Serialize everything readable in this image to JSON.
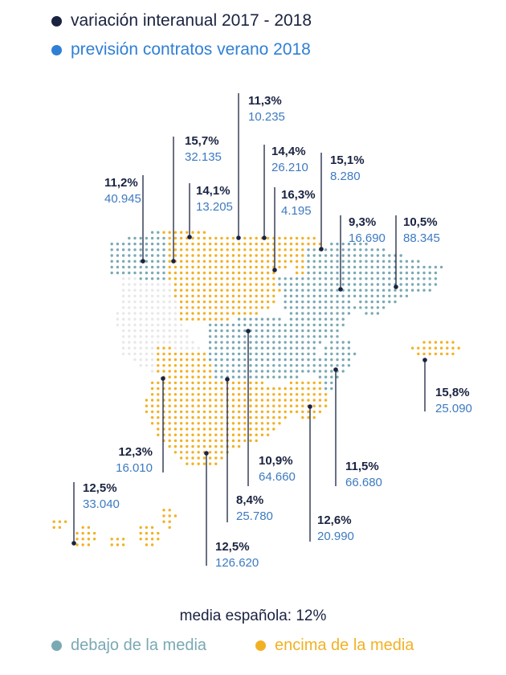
{
  "legend": {
    "top": [
      {
        "label": "variación interanual 2017 - 2018",
        "color": "#1a2340"
      },
      {
        "label": "previsión contratos verano 2018",
        "color": "#2f7fd6"
      }
    ],
    "bottom": [
      {
        "label": "debajo de la media",
        "color": "#7aa9b3"
      },
      {
        "label": "encima de la media",
        "color": "#f2b124"
      }
    ]
  },
  "footer": {
    "average_label": "media española: 12%"
  },
  "colors": {
    "pct_text": "#1a2340",
    "count_text": "#3d7ac0",
    "leader": "#1a2340",
    "below": "#7aa9b3",
    "above": "#f2b124",
    "neutral": "#e8e8e8"
  },
  "chart_data": {
    "type": "map",
    "title": "",
    "reference": {
      "label": "media española",
      "value": 12,
      "unit": "%"
    },
    "regions": [
      {
        "variacion": "11,2%",
        "contratos": "40.945",
        "category": "below"
      },
      {
        "variacion": "15,7%",
        "contratos": "32.135",
        "category": "above"
      },
      {
        "variacion": "14,1%",
        "contratos": "13.205",
        "category": "above"
      },
      {
        "variacion": "11,3%",
        "contratos": "10.235",
        "category": "below"
      },
      {
        "variacion": "14,4%",
        "contratos": "26.210",
        "category": "above"
      },
      {
        "variacion": "16,3%",
        "contratos": "4.195",
        "category": "above"
      },
      {
        "variacion": "15,1%",
        "contratos": "8.280",
        "category": "above"
      },
      {
        "variacion": "9,3%",
        "contratos": "16.690",
        "category": "below"
      },
      {
        "variacion": "10,5%",
        "contratos": "88.345",
        "category": "below"
      },
      {
        "variacion": "15,8%",
        "contratos": "25.090",
        "category": "above"
      },
      {
        "variacion": "12,3%",
        "contratos": "16.010",
        "category": "above"
      },
      {
        "variacion": "10,9%",
        "contratos": "64.660",
        "category": "below"
      },
      {
        "variacion": "11,5%",
        "contratos": "66.680",
        "category": "below"
      },
      {
        "variacion": "8,4%",
        "contratos": "25.780",
        "category": "below"
      },
      {
        "variacion": "12,6%",
        "contratos": "20.990",
        "category": "above"
      },
      {
        "variacion": "12,5%",
        "contratos": "126.620",
        "category": "above"
      },
      {
        "variacion": "12,5%",
        "contratos": "33.040",
        "category": "above"
      }
    ]
  }
}
